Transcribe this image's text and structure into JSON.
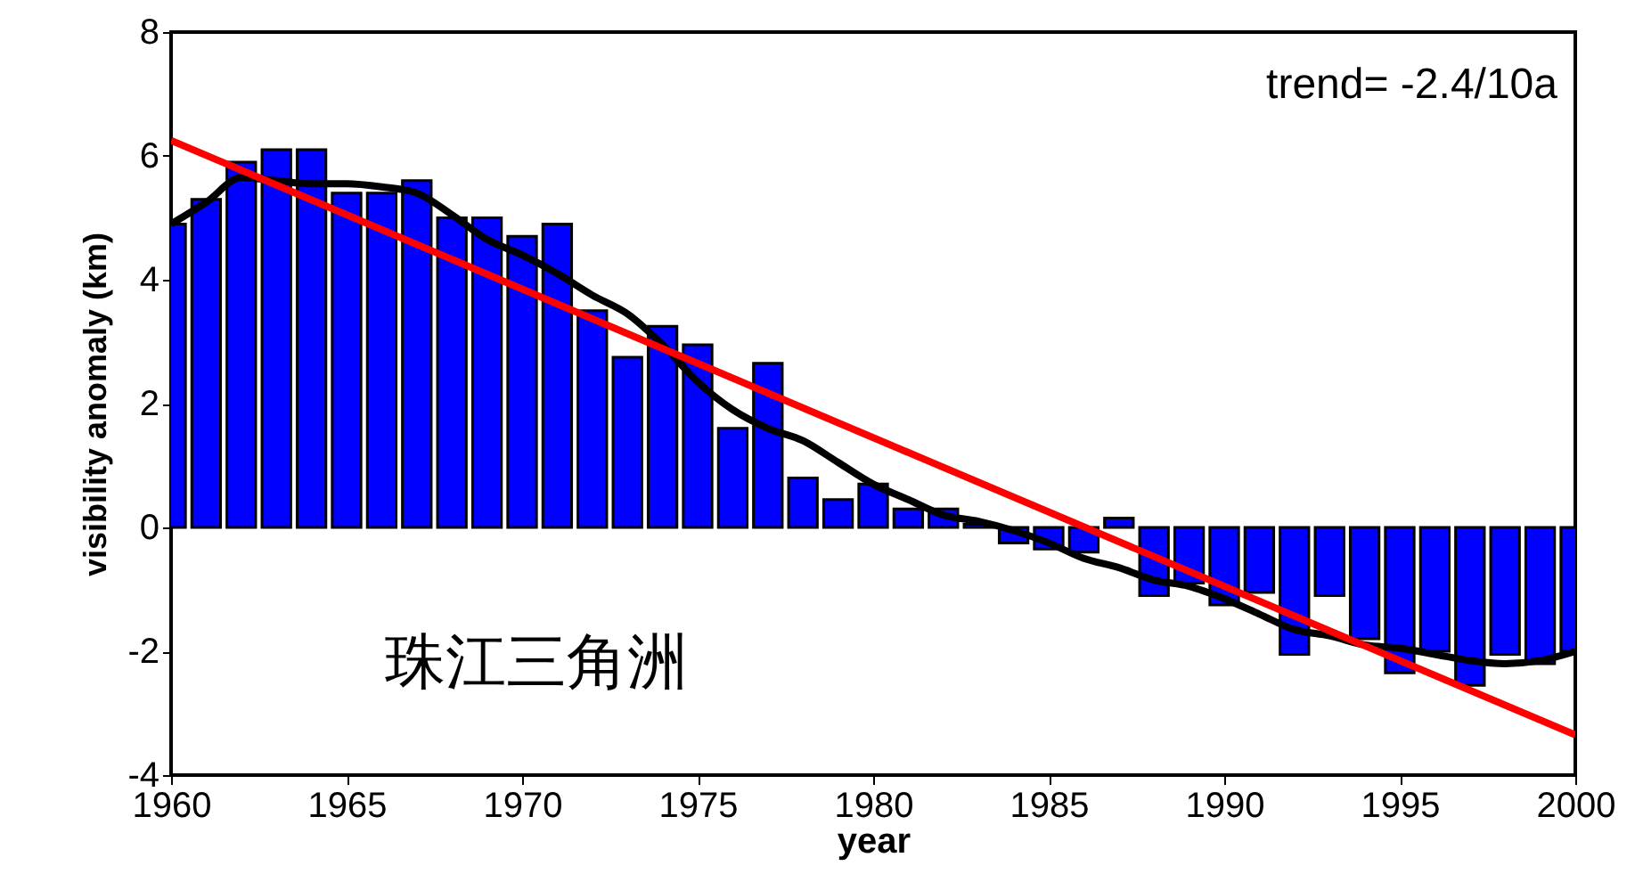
{
  "chart_data": {
    "type": "bar",
    "xlabel": "year",
    "ylabel": "visibility anomaly (km)",
    "x": [
      1960,
      1961,
      1962,
      1963,
      1964,
      1965,
      1966,
      1967,
      1968,
      1969,
      1970,
      1971,
      1972,
      1973,
      1974,
      1975,
      1976,
      1977,
      1978,
      1979,
      1980,
      1981,
      1982,
      1983,
      1984,
      1985,
      1986,
      1987,
      1988,
      1989,
      1990,
      1991,
      1992,
      1993,
      1994,
      1995,
      1996,
      1997,
      1998,
      1999,
      2000
    ],
    "series": [
      {
        "color": "#0000ff",
        "values": [
          4.9,
          5.3,
          5.9,
          6.1,
          6.1,
          5.4,
          5.4,
          5.6,
          5.0,
          5.0,
          4.7,
          4.9,
          3.5,
          2.75,
          3.25,
          2.95,
          1.6,
          2.65,
          0.8,
          0.45,
          0.7,
          0.3,
          0.3,
          0.05,
          -0.25,
          -0.35,
          -0.4,
          0.15,
          -1.1,
          -0.9,
          -1.25,
          -1.05,
          -2.05,
          -1.1,
          -1.8,
          -2.35,
          -2.0,
          -2.55,
          -2.05,
          -2.2,
          -2.0
        ]
      },
      {
        "type": "line",
        "color": "#000000",
        "values": [
          4.9,
          5.25,
          5.65,
          5.6,
          5.55,
          5.55,
          5.5,
          5.4,
          5.05,
          4.65,
          4.4,
          4.1,
          3.75,
          3.45,
          2.95,
          2.35,
          1.9,
          1.6,
          1.4,
          1.05,
          0.7,
          0.45,
          0.2,
          0.1,
          -0.05,
          -0.25,
          -0.5,
          -0.65,
          -0.85,
          -0.95,
          -1.15,
          -1.4,
          -1.65,
          -1.75,
          -1.9,
          -1.95,
          -2.05,
          -2.15,
          -2.2,
          -2.15,
          -2.0
        ]
      },
      {
        "type": "line",
        "color": "#ff0000",
        "x": [
          1960,
          2000
        ],
        "values": [
          6.25,
          -3.35
        ]
      }
    ],
    "xlim": [
      1960,
      2000
    ],
    "xticks": [
      1960,
      1965,
      1970,
      1975,
      1980,
      1985,
      1990,
      1995,
      2000
    ],
    "ylim": [
      -4,
      8
    ],
    "yticks": [
      -4,
      -2,
      0,
      2,
      4,
      6,
      8
    ],
    "annotations": [
      "trend= -2.4/10a",
      "珠江三角洲"
    ]
  }
}
